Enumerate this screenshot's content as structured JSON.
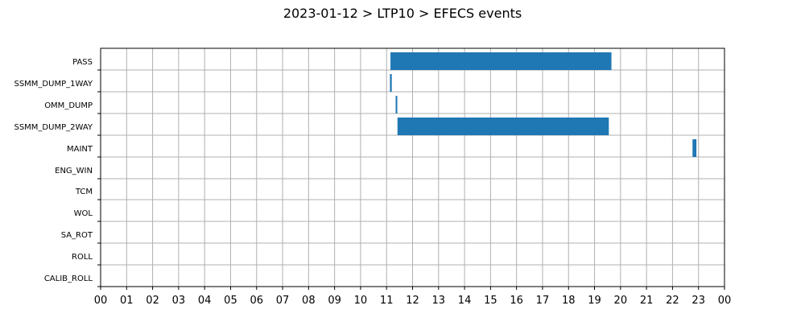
{
  "chart_data": {
    "type": "bar",
    "orientation": "horizontal-timeline",
    "title": "2023-01-12 > LTP10 > EFECS events",
    "xlabel": "",
    "ylabel": "",
    "categories": [
      "PASS",
      "SSMM_DUMP_1WAY",
      "OMM_DUMP",
      "SSMM_DUMP_2WAY",
      "MAINT",
      "ENG_WIN",
      "TCM",
      "WOL",
      "SA_ROT",
      "ROLL",
      "CALIB_ROLL"
    ],
    "x_ticks": [
      "00",
      "01",
      "02",
      "03",
      "04",
      "05",
      "06",
      "07",
      "08",
      "09",
      "10",
      "11",
      "12",
      "13",
      "14",
      "15",
      "16",
      "17",
      "18",
      "19",
      "20",
      "21",
      "22",
      "23",
      "00"
    ],
    "xlim_hours": [
      0,
      24
    ],
    "grid": true,
    "bar_color": "#1f77b4",
    "events": [
      {
        "category": "PASS",
        "start_h": 11.15,
        "end_h": 19.65
      },
      {
        "category": "SSMM_DUMP_1WAY",
        "start_h": 11.13,
        "end_h": 11.2
      },
      {
        "category": "OMM_DUMP",
        "start_h": 11.35,
        "end_h": 11.4
      },
      {
        "category": "SSMM_DUMP_2WAY",
        "start_h": 11.42,
        "end_h": 19.55
      },
      {
        "category": "MAINT",
        "start_h": 22.77,
        "end_h": 22.92
      }
    ]
  }
}
